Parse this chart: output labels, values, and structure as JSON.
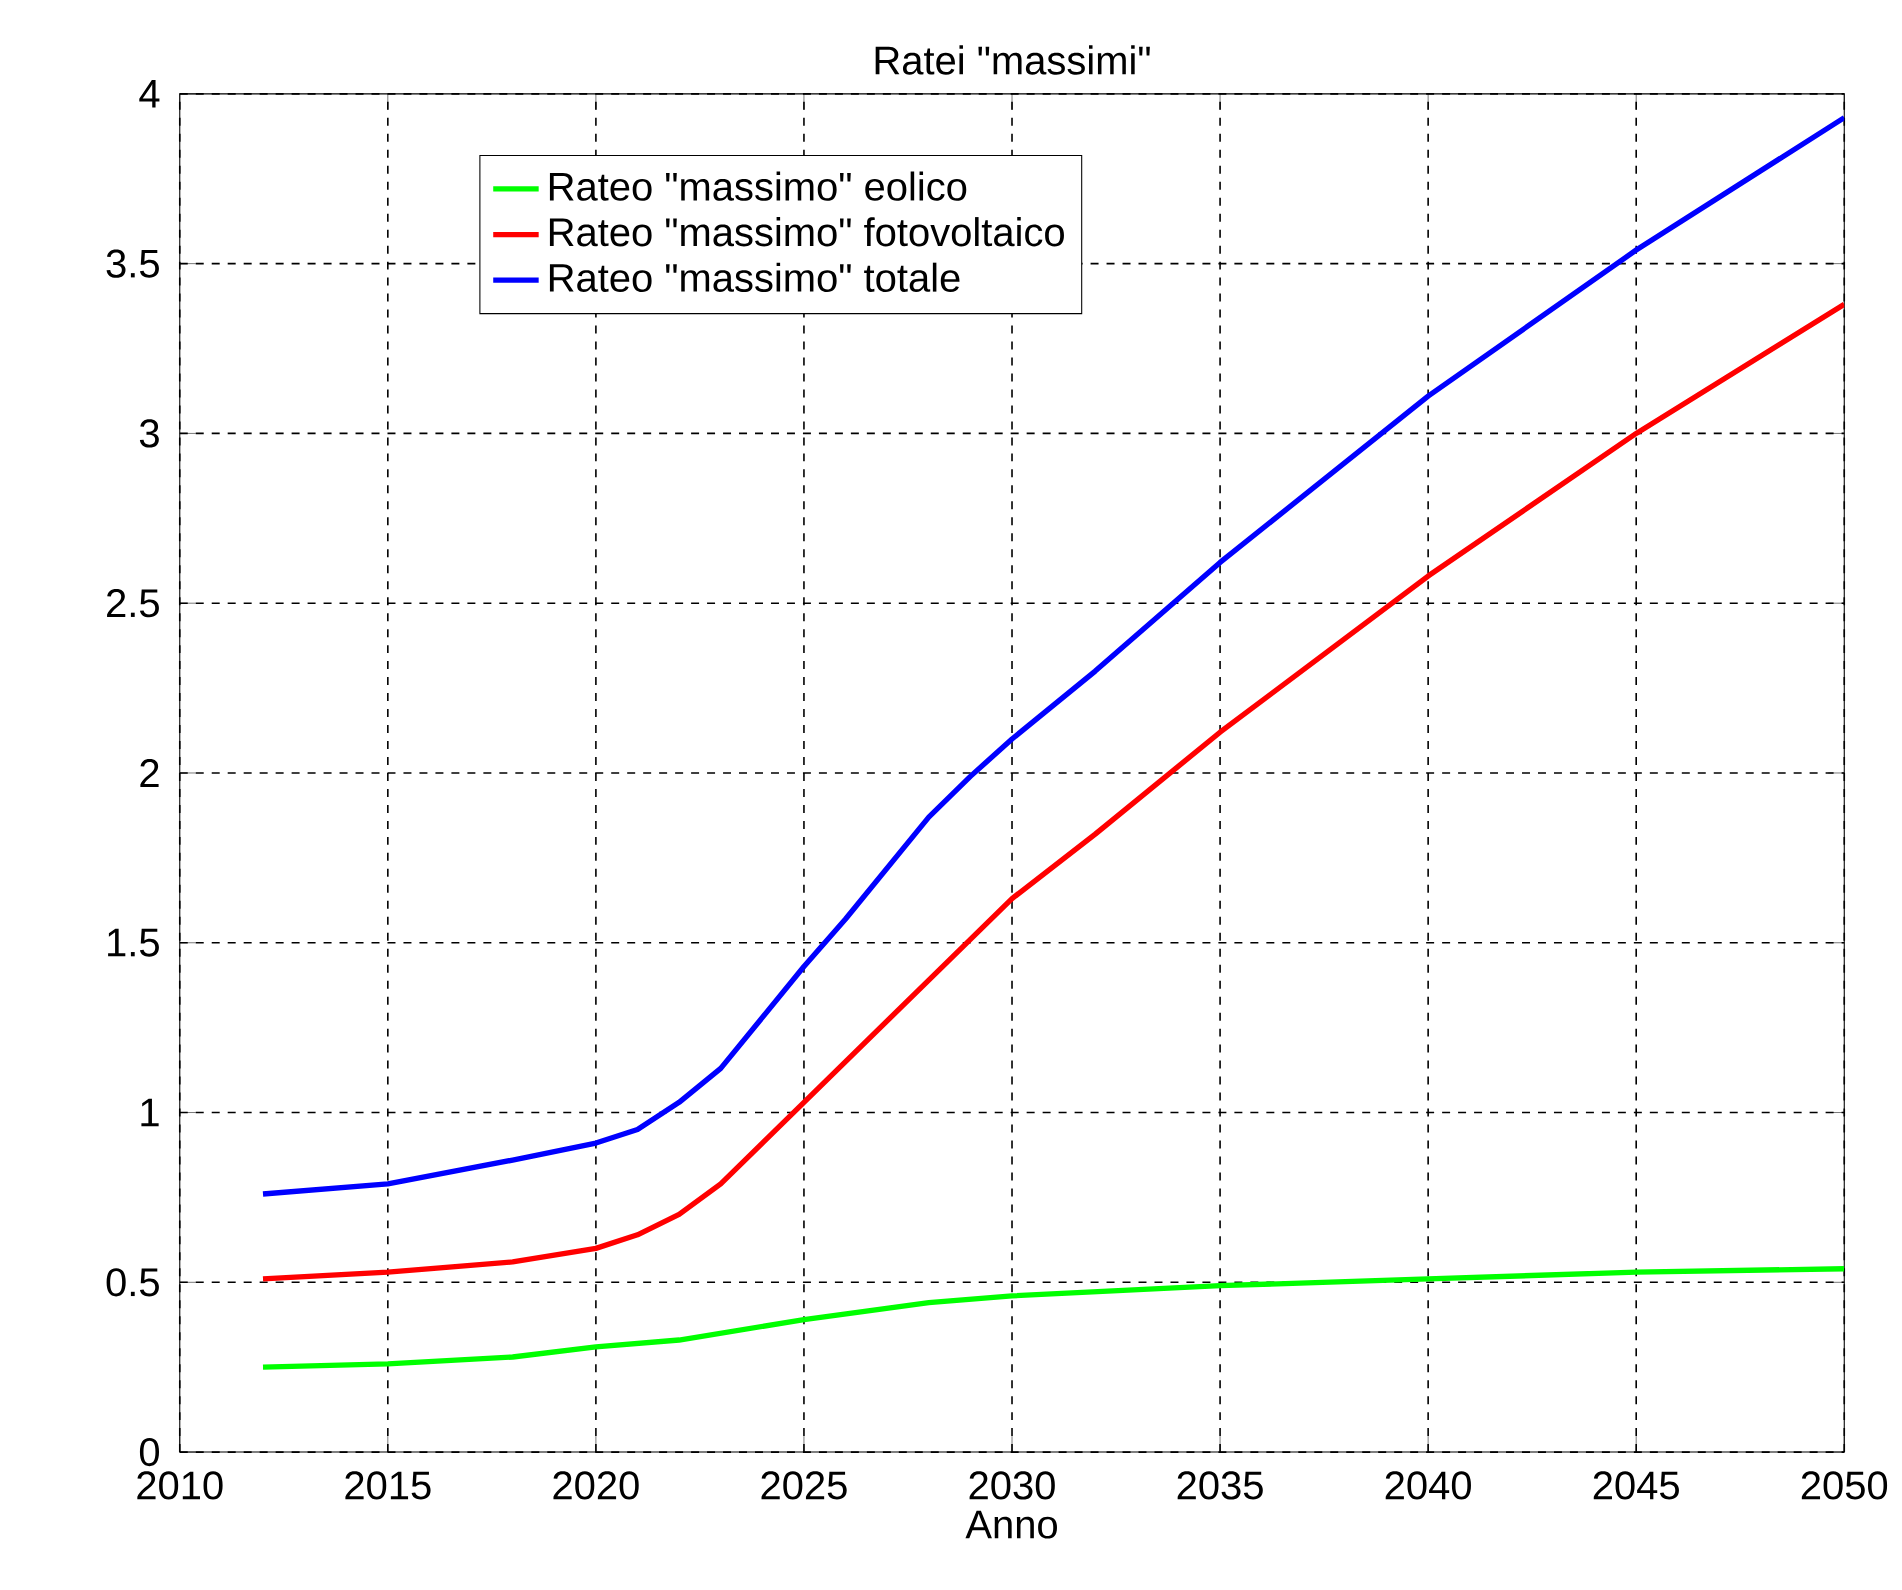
{
  "chart_data": {
    "type": "line",
    "title": "Ratei \"massimi\"",
    "xlabel": "Anno",
    "xlim": [
      2010,
      2050
    ],
    "ylim": [
      0,
      4
    ],
    "xticks": [
      2010,
      2015,
      2020,
      2025,
      2030,
      2035,
      2040,
      2045,
      2050
    ],
    "yticks": [
      0,
      0.5,
      1,
      1.5,
      2,
      2.5,
      3,
      3.5,
      4
    ],
    "grid": true,
    "legend": "top",
    "line_style": "solid",
    "marker": "none",
    "series": [
      {
        "name": "Rateo \"massimo\" eolico",
        "color": "#00ff00",
        "x": [
          2012,
          2015,
          2018,
          2020,
          2022,
          2025,
          2028,
          2030,
          2035,
          2040,
          2045,
          2050
        ],
        "values": [
          0.25,
          0.26,
          0.28,
          0.31,
          0.33,
          0.39,
          0.44,
          0.46,
          0.49,
          0.51,
          0.53,
          0.54
        ]
      },
      {
        "name": "Rateo \"massimo\" fotovoltaico",
        "color": "#ff0000",
        "x": [
          2012,
          2015,
          2018,
          2020,
          2021,
          2022,
          2023,
          2024,
          2025,
          2026,
          2027,
          2028,
          2029,
          2030,
          2032,
          2035,
          2040,
          2045,
          2050
        ],
        "values": [
          0.51,
          0.53,
          0.56,
          0.6,
          0.64,
          0.7,
          0.79,
          0.91,
          1.03,
          1.15,
          1.27,
          1.39,
          1.51,
          1.63,
          1.82,
          2.12,
          2.58,
          3.0,
          3.38
        ]
      },
      {
        "name": "Rateo \"massimo\" totale",
        "color": "#0000ff",
        "x": [
          2012,
          2015,
          2018,
          2020,
          2021,
          2022,
          2023,
          2024,
          2025,
          2026,
          2027,
          2028,
          2029,
          2030,
          2032,
          2035,
          2040,
          2045,
          2050
        ],
        "values": [
          0.76,
          0.79,
          0.86,
          0.91,
          0.95,
          1.03,
          1.13,
          1.28,
          1.43,
          1.57,
          1.72,
          1.87,
          1.99,
          2.1,
          2.3,
          2.62,
          3.11,
          3.54,
          3.93
        ]
      }
    ]
  }
}
